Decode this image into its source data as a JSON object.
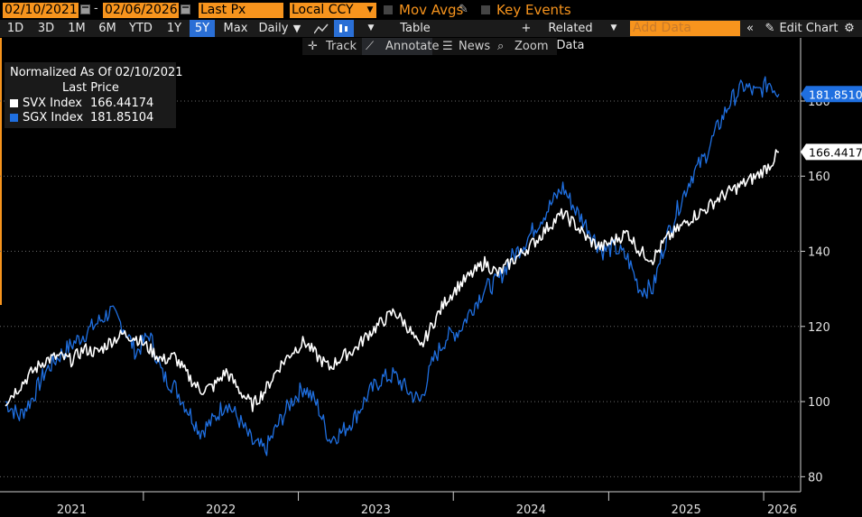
{
  "toolbar": {
    "start_date": "02/10/2021",
    "end_date": "02/06/2026",
    "field": "Last Px",
    "currency": "Local CCY",
    "mov_avgs": "Mov Avgs",
    "key_events": "Key Events"
  },
  "periods": [
    {
      "label": "1D"
    },
    {
      "label": "3D"
    },
    {
      "label": "1M"
    },
    {
      "label": "6M"
    },
    {
      "label": "YTD"
    },
    {
      "label": "1Y"
    },
    {
      "label": "5Y",
      "selected": true
    },
    {
      "label": "Max"
    }
  ],
  "frequency": "Daily",
  "table_label": "Table",
  "related_data": "Related Data",
  "add_data_placeholder": "Add Data",
  "edit_chart": "Edit Chart",
  "subbar": {
    "track": "Track",
    "annotate": "Annotate",
    "news": "News",
    "zoom": "Zoom"
  },
  "legend": {
    "title": "Normalized As Of 02/10/2021",
    "subtitle": "Last Price",
    "series": [
      {
        "name": "SVX Index",
        "value": "166.44174",
        "color": "#ffffff"
      },
      {
        "name": "SGX Index",
        "value": "181.85104",
        "color": "#1f6fe0"
      }
    ]
  },
  "colors": {
    "accent": "#f7941d",
    "sgx": "#1f6fe0",
    "svx": "#ffffff",
    "bg": "#000000"
  },
  "chart_data": {
    "type": "line",
    "x_range": [
      "2021-02-10",
      "2026-02-06"
    ],
    "ylim": [
      76,
      192
    ],
    "y_ticks": [
      80,
      100,
      120,
      140,
      160,
      180
    ],
    "x_tick_labels": [
      "2021",
      "2022",
      "2023",
      "2024",
      "2025",
      "2026"
    ],
    "price_labels": [
      "166.44174",
      "181.85104"
    ],
    "series": [
      {
        "name": "SVX Index",
        "color": "#ffffff",
        "last": 166.44174,
        "points": [
          [
            "2021-02-10",
            100
          ],
          [
            "2021-03-15",
            104
          ],
          [
            "2021-04-15",
            108
          ],
          [
            "2021-05-15",
            111
          ],
          [
            "2021-06-15",
            112
          ],
          [
            "2021-07-15",
            111
          ],
          [
            "2021-08-15",
            114
          ],
          [
            "2021-09-15",
            113
          ],
          [
            "2021-10-15",
            116
          ],
          [
            "2021-11-15",
            118
          ],
          [
            "2021-12-15",
            117
          ],
          [
            "2022-01-15",
            114
          ],
          [
            "2022-02-15",
            111
          ],
          [
            "2022-03-15",
            112
          ],
          [
            "2022-04-15",
            107
          ],
          [
            "2022-05-15",
            103
          ],
          [
            "2022-06-15",
            104
          ],
          [
            "2022-07-15",
            108
          ],
          [
            "2022-08-15",
            103
          ],
          [
            "2022-09-15",
            99
          ],
          [
            "2022-10-15",
            103
          ],
          [
            "2022-11-15",
            109
          ],
          [
            "2022-12-15",
            113
          ],
          [
            "2023-01-15",
            116
          ],
          [
            "2023-02-15",
            112
          ],
          [
            "2023-03-15",
            109
          ],
          [
            "2023-04-15",
            112
          ],
          [
            "2023-05-15",
            114
          ],
          [
            "2023-06-15",
            118
          ],
          [
            "2023-07-15",
            121
          ],
          [
            "2023-08-15",
            124
          ],
          [
            "2023-09-15",
            120
          ],
          [
            "2023-10-15",
            114
          ],
          [
            "2023-11-15",
            121
          ],
          [
            "2023-12-15",
            127
          ],
          [
            "2024-01-15",
            131
          ],
          [
            "2024-02-15",
            134
          ],
          [
            "2024-03-15",
            137
          ],
          [
            "2024-04-15",
            134
          ],
          [
            "2024-05-15",
            137
          ],
          [
            "2024-06-15",
            140
          ],
          [
            "2024-07-15",
            143
          ],
          [
            "2024-08-15",
            147
          ],
          [
            "2024-09-15",
            150
          ],
          [
            "2024-10-15",
            147
          ],
          [
            "2024-11-15",
            143
          ],
          [
            "2024-12-15",
            141
          ],
          [
            "2025-01-15",
            143
          ],
          [
            "2025-02-15",
            145
          ],
          [
            "2025-03-15",
            140
          ],
          [
            "2025-04-15",
            138
          ],
          [
            "2025-05-15",
            143
          ],
          [
            "2025-06-15",
            146
          ],
          [
            "2025-07-15",
            149
          ],
          [
            "2025-08-15",
            151
          ],
          [
            "2025-09-15",
            154
          ],
          [
            "2025-10-15",
            156
          ],
          [
            "2025-11-15",
            158
          ],
          [
            "2025-12-15",
            160
          ],
          [
            "2026-01-15",
            163
          ],
          [
            "2026-02-06",
            166.44
          ]
        ]
      },
      {
        "name": "SGX Index",
        "color": "#1f6fe0",
        "last": 181.85104,
        "points": [
          [
            "2021-02-10",
            100
          ],
          [
            "2021-03-15",
            96
          ],
          [
            "2021-04-15",
            101
          ],
          [
            "2021-05-15",
            108
          ],
          [
            "2021-06-15",
            112
          ],
          [
            "2021-07-15",
            115
          ],
          [
            "2021-08-15",
            118
          ],
          [
            "2021-09-15",
            121
          ],
          [
            "2021-10-15",
            124
          ],
          [
            "2021-11-15",
            120
          ],
          [
            "2021-12-15",
            113
          ],
          [
            "2022-01-15",
            118
          ],
          [
            "2022-02-15",
            107
          ],
          [
            "2022-03-15",
            104
          ],
          [
            "2022-04-15",
            98
          ],
          [
            "2022-05-15",
            92
          ],
          [
            "2022-06-15",
            95
          ],
          [
            "2022-07-15",
            100
          ],
          [
            "2022-08-15",
            95
          ],
          [
            "2022-09-15",
            89
          ],
          [
            "2022-10-15",
            87
          ],
          [
            "2022-11-15",
            94
          ],
          [
            "2022-12-15",
            100
          ],
          [
            "2023-01-15",
            104
          ],
          [
            "2023-02-15",
            99
          ],
          [
            "2023-03-15",
            90
          ],
          [
            "2023-04-15",
            92
          ],
          [
            "2023-05-15",
            96
          ],
          [
            "2023-06-15",
            102
          ],
          [
            "2023-07-15",
            106
          ],
          [
            "2023-08-15",
            107
          ],
          [
            "2023-09-15",
            103
          ],
          [
            "2023-10-15",
            100
          ],
          [
            "2023-11-15",
            111
          ],
          [
            "2023-12-15",
            117
          ],
          [
            "2024-01-15",
            119
          ],
          [
            "2024-02-15",
            125
          ],
          [
            "2024-03-15",
            130
          ],
          [
            "2024-04-15",
            132
          ],
          [
            "2024-05-15",
            138
          ],
          [
            "2024-06-15",
            142
          ],
          [
            "2024-07-15",
            147
          ],
          [
            "2024-08-15",
            152
          ],
          [
            "2024-09-15",
            157
          ],
          [
            "2024-10-15",
            151
          ],
          [
            "2024-11-15",
            146
          ],
          [
            "2024-12-15",
            140
          ],
          [
            "2025-01-15",
            141
          ],
          [
            "2025-02-15",
            138
          ],
          [
            "2025-03-15",
            130
          ],
          [
            "2025-04-15",
            130
          ],
          [
            "2025-05-15",
            143
          ],
          [
            "2025-06-15",
            152
          ],
          [
            "2025-07-15",
            160
          ],
          [
            "2025-08-15",
            165
          ],
          [
            "2025-09-15",
            173
          ],
          [
            "2025-10-15",
            180
          ],
          [
            "2025-11-15",
            184
          ],
          [
            "2025-12-15",
            182
          ],
          [
            "2026-01-15",
            185
          ],
          [
            "2026-02-06",
            181.85
          ]
        ]
      }
    ]
  }
}
